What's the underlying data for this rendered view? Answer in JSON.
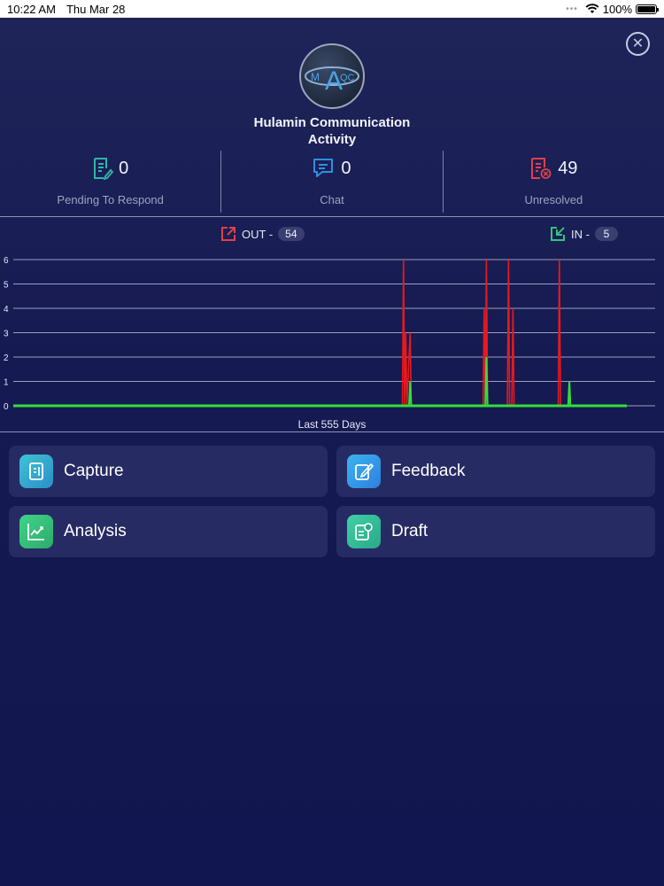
{
  "status_bar": {
    "time": "10:22 AM",
    "date": "Thu Mar 28",
    "battery": "100%"
  },
  "header": {
    "title_line1": "Hulamin Communication",
    "title_line2": "Activity",
    "logo_text_left": "M",
    "logo_text_mid": "A",
    "logo_text_right": "QC",
    "close_icon": "close-icon"
  },
  "stats": [
    {
      "value": "0",
      "label": "Pending To Respond",
      "icon": "document-edit-icon",
      "color": "#2fb6a8"
    },
    {
      "value": "0",
      "label": "Chat",
      "icon": "chat-icon",
      "color": "#2f8fe0"
    },
    {
      "value": "49",
      "label": "Unresolved",
      "icon": "document-cancel-icon",
      "color": "#e0404a"
    }
  ],
  "legend": {
    "out_label": "OUT -",
    "out_count": "54",
    "in_label": "IN -",
    "in_count": "5",
    "out_color": "#e0404a",
    "in_color": "#35c27a"
  },
  "chart_data": {
    "type": "line",
    "xlabel": "Last 555 Days",
    "ylim": [
      0,
      6
    ],
    "yticks": [
      0,
      1,
      2,
      3,
      4,
      5,
      6
    ],
    "x_range": [
      0,
      555
    ],
    "grid": true,
    "series": [
      {
        "name": "OUT",
        "color": "#e8191e",
        "points": [
          [
            0,
            0
          ],
          [
            352,
            0
          ],
          [
            353,
            6
          ],
          [
            354,
            0
          ],
          [
            355,
            3
          ],
          [
            356,
            0
          ],
          [
            359,
            3
          ],
          [
            360,
            0
          ],
          [
            425,
            0
          ],
          [
            426,
            4
          ],
          [
            427,
            0
          ],
          [
            427.5,
            3
          ],
          [
            428,
            6
          ],
          [
            429,
            0
          ],
          [
            447,
            0
          ],
          [
            448,
            6
          ],
          [
            449,
            0
          ],
          [
            451,
            0
          ],
          [
            452,
            4
          ],
          [
            453,
            0
          ],
          [
            493,
            0
          ],
          [
            494,
            6
          ],
          [
            495,
            0
          ],
          [
            555,
            0
          ]
        ]
      },
      {
        "name": "IN",
        "color": "#31e03a",
        "points": [
          [
            0,
            0
          ],
          [
            358,
            0
          ],
          [
            359,
            1
          ],
          [
            360,
            0
          ],
          [
            427,
            0
          ],
          [
            428,
            2
          ],
          [
            429,
            0
          ],
          [
            502,
            0
          ],
          [
            503,
            1
          ],
          [
            504,
            0
          ],
          [
            555,
            0
          ]
        ]
      }
    ]
  },
  "actions": [
    {
      "label": "Capture",
      "icon": "capture-icon",
      "color_from": "#3ec3d6",
      "color_to": "#2c8fc8"
    },
    {
      "label": "Feedback",
      "icon": "feedback-icon",
      "color_from": "#3ab4f0",
      "color_to": "#2f7fdc"
    },
    {
      "label": "Analysis",
      "icon": "analysis-icon",
      "color_from": "#3fd58a",
      "color_to": "#2caa6a"
    },
    {
      "label": "Draft",
      "icon": "draft-icon",
      "color_from": "#3ed0a8",
      "color_to": "#2aa887"
    }
  ]
}
